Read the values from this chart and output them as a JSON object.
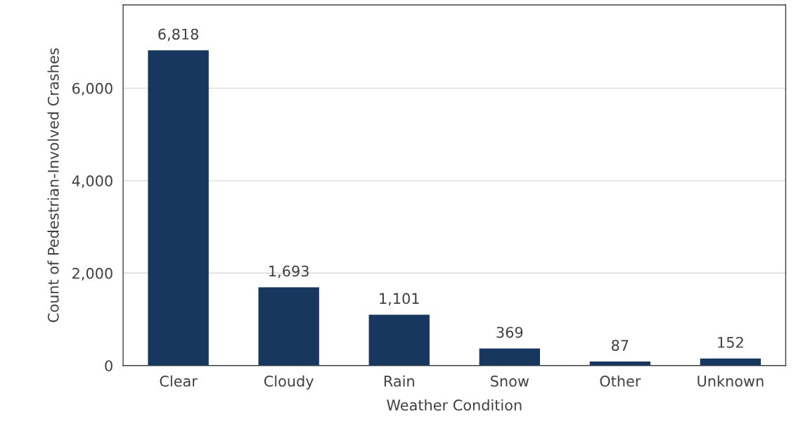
{
  "chart_data": {
    "type": "bar",
    "xlabel": "Weather Condition",
    "ylabel": "Count of Pedestrian-Involved Crashes",
    "categories": [
      "Clear",
      "Cloudy",
      "Rain",
      "Snow",
      "Other",
      "Unknown"
    ],
    "values": [
      6818,
      1693,
      1101,
      369,
      87,
      152
    ],
    "value_labels": [
      "6,818",
      "1,693",
      "1,101",
      "369",
      "87",
      "152"
    ],
    "color": "#17375e",
    "ylim": [
      0,
      7800
    ],
    "yticks": [
      {
        "value": 0,
        "label": "0"
      },
      {
        "value": 2000,
        "label": "2,000"
      },
      {
        "value": 4000,
        "label": "4,000"
      },
      {
        "value": 6000,
        "label": "6,000"
      }
    ],
    "grid": "y",
    "legend": false
  }
}
